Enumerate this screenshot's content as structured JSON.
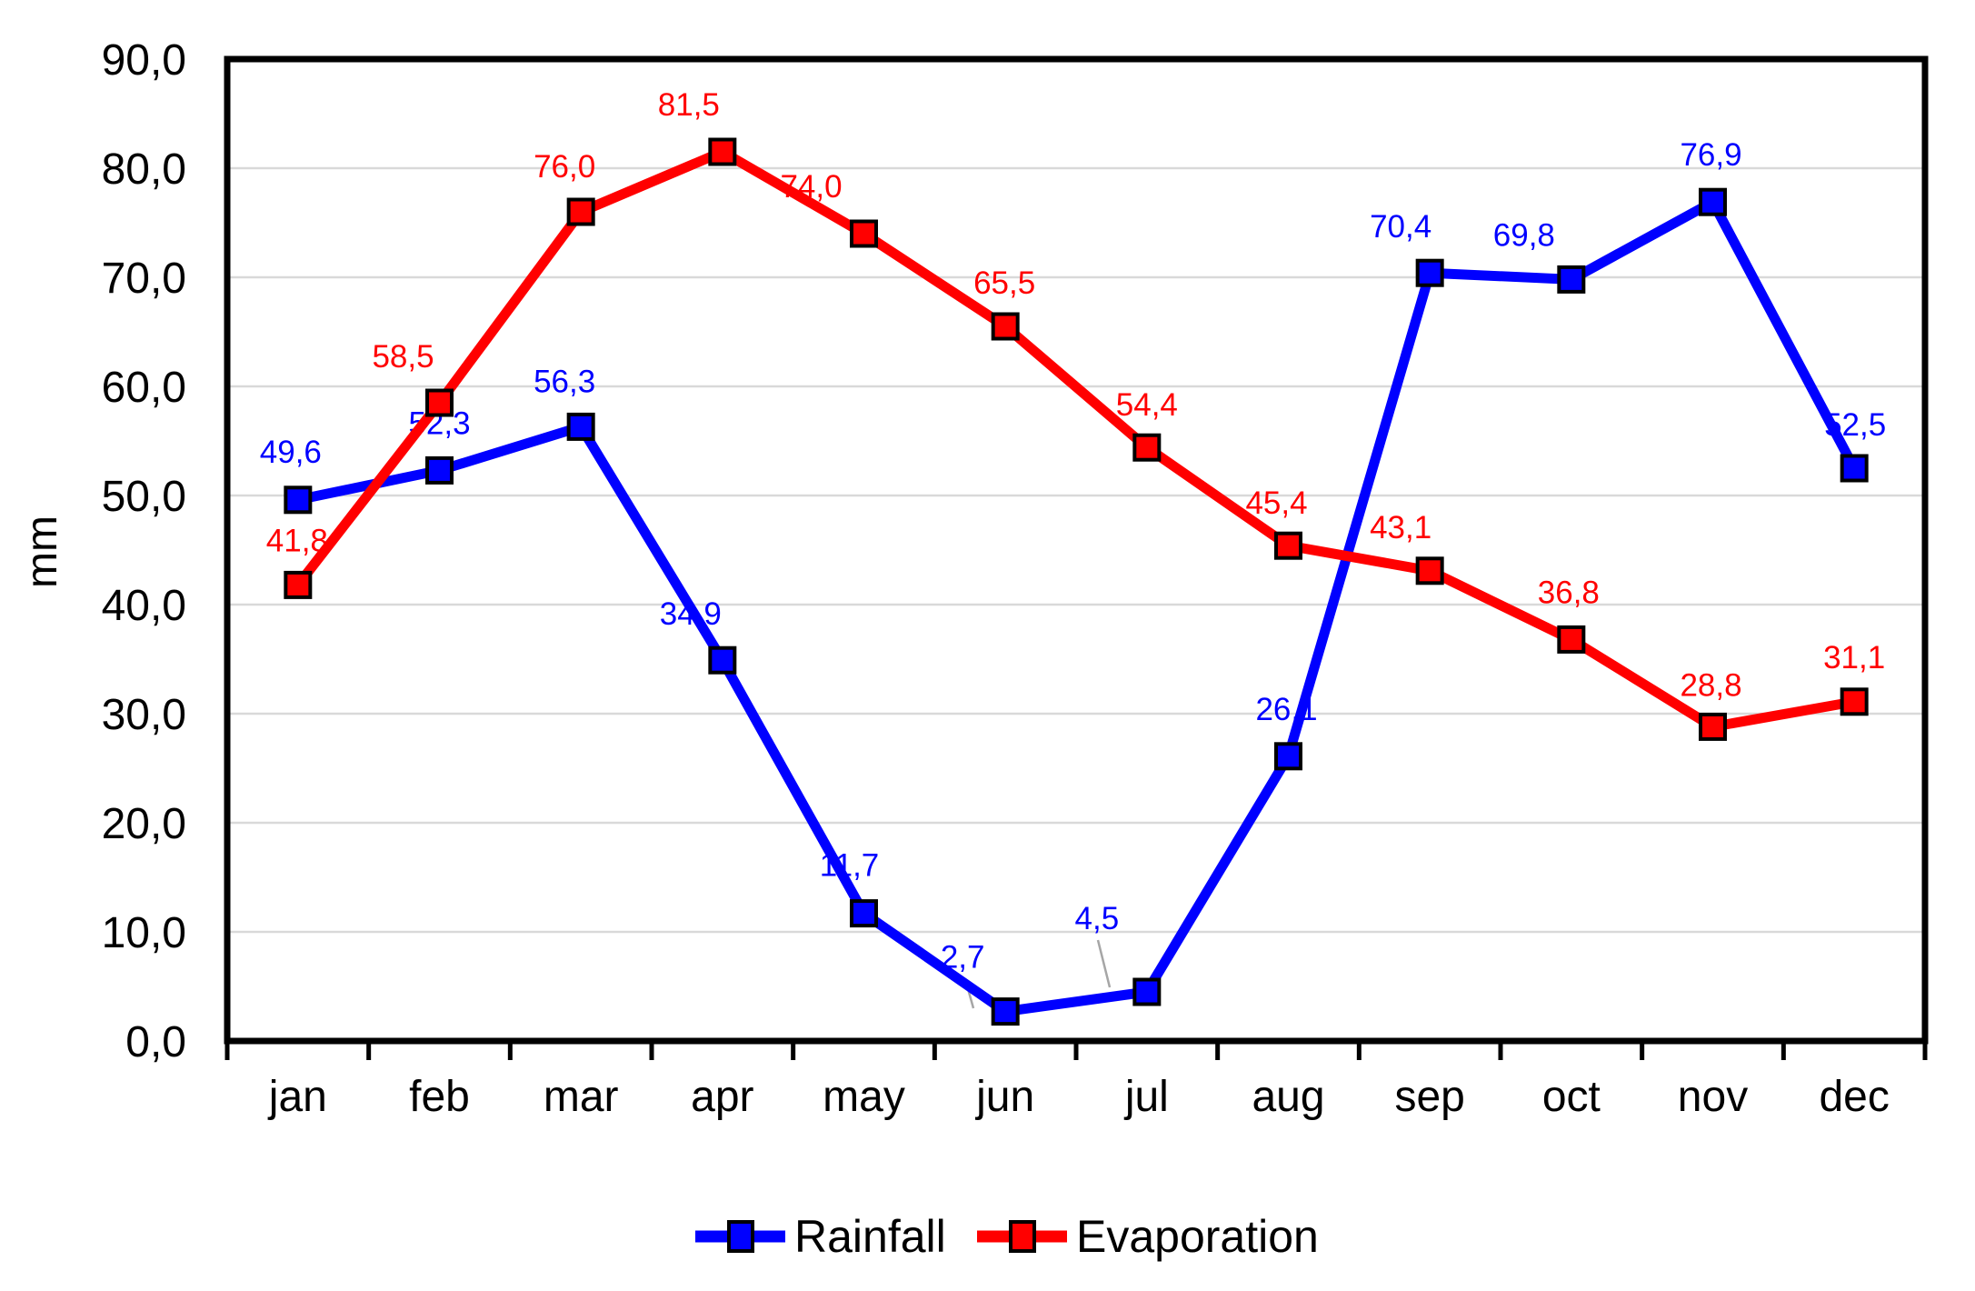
{
  "chart_data": {
    "type": "line",
    "title": "",
    "xlabel": "",
    "ylabel": "mm",
    "categories": [
      "jan",
      "feb",
      "mar",
      "apr",
      "may",
      "jun",
      "jul",
      "aug",
      "sep",
      "oct",
      "nov",
      "dec"
    ],
    "series": [
      {
        "name": "Rainfall",
        "color": "#0000ff",
        "values": [
          49.6,
          52.3,
          56.3,
          34.9,
          11.7,
          2.7,
          4.5,
          26.1,
          70.4,
          69.8,
          76.9,
          52.5
        ],
        "labels": [
          "49,6",
          "52,3",
          "56,3",
          "34,9",
          "11,7",
          "2,7",
          "4,5",
          "26,1",
          "70,4",
          "69,8",
          "76,9",
          "52,5"
        ]
      },
      {
        "name": "Evaporation",
        "color": "#ff0000",
        "values": [
          41.8,
          58.5,
          76.0,
          81.5,
          74.0,
          65.5,
          54.4,
          45.4,
          43.1,
          36.8,
          28.8,
          31.1
        ],
        "labels": [
          "41,8",
          "58,5",
          "76,0",
          "81,5",
          "74,0",
          "65,5",
          "54,4",
          "45,4",
          "43,1",
          "36,8",
          "28,8",
          "31,1"
        ]
      }
    ],
    "y_tick_labels": [
      "0,0",
      "10,0",
      "20,0",
      "30,0",
      "40,0",
      "50,0",
      "60,0",
      "70,0",
      "80,0",
      "90,0"
    ],
    "ylim": [
      0,
      90
    ],
    "y_step": 10,
    "grid": "horizontal",
    "legend_position": "bottom-center",
    "colors": {
      "grid": "#d9d9d9",
      "axis": "#000000",
      "leader": "#a6a6a6",
      "background": "#ffffff"
    },
    "layout_hints": {
      "label_dx": {
        "Rainfall": [
          -8,
          0,
          -18,
          -35,
          -16,
          -47,
          -55,
          -2,
          -32,
          -52,
          -2,
          1
        ],
        "Evaporation": [
          -1,
          -40,
          -18,
          -37,
          -58,
          -1,
          0,
          -13,
          -32,
          -3,
          -2,
          0
        ]
      },
      "label_dy": {
        "Rainfall": [
          -53,
          -52,
          -50,
          -51,
          -53,
          -60,
          -81,
          -52,
          -51,
          -49,
          -52,
          -48
        ],
        "Evaporation": [
          -49,
          -51,
          -50,
          -52,
          -52,
          -48,
          -47,
          -47,
          -48,
          -52,
          -46,
          -49
        ]
      },
      "leader_lines": [
        {
          "series": 0,
          "index": 5,
          "points": [
            1062,
            1077,
            1071,
            1109
          ]
        },
        {
          "series": 0,
          "index": 6,
          "points": [
            1208,
            1034,
            1221,
            1086
          ]
        }
      ]
    }
  }
}
